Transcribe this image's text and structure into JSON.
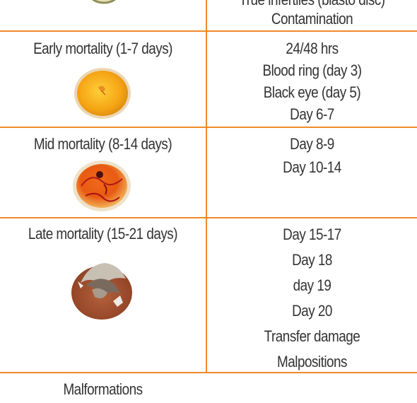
{
  "table": {
    "top_row": {
      "right": [
        "True infertiles (blasto disc)",
        "Contamination"
      ]
    },
    "rows": [
      {
        "stage": "Early mortality (1-7 days)",
        "image": "early-embryo-egg",
        "signs": [
          "24/48 hrs",
          "Blood ring (day 3)",
          "Black eye (day 5)",
          "Day 6-7"
        ]
      },
      {
        "stage": "Mid mortality (8-14 days)",
        "image": "mid-embryo-egg",
        "signs": [
          "Day 8-9",
          "Day 10-14"
        ]
      },
      {
        "stage": "Late mortality (15-21 days)",
        "image": "late-embryo-egg",
        "signs": [
          "Day 15-17",
          "Day 18",
          "day 19",
          "Day 20",
          "Transfer damage",
          "Malpositions"
        ]
      }
    ],
    "footer": "Malformations"
  },
  "colors": {
    "border": "#f08a2c",
    "text": "#333333"
  }
}
